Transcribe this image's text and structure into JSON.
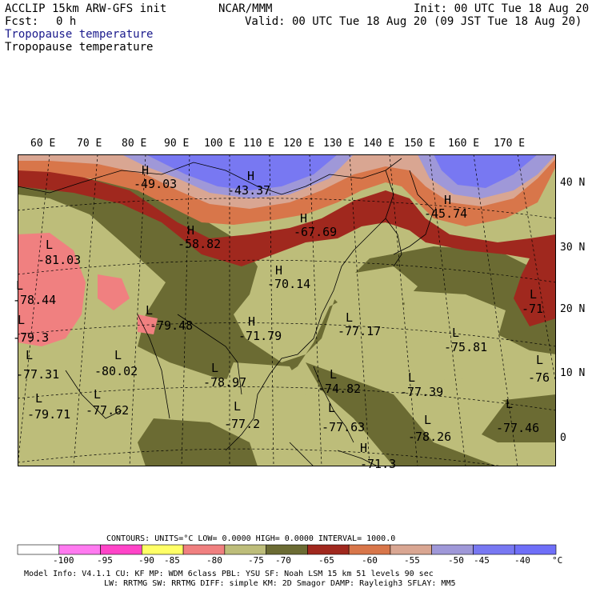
{
  "header": {
    "model_title": "ACCLIP 15km ARW-GFS init",
    "org": "NCAR/MMM",
    "init": "Init: 00 UTC Tue 18 Aug 20",
    "fcst_label": "Fcst:",
    "fcst_value": "0 h",
    "valid": "Valid: 00 UTC Tue 18 Aug 20 (09 JST Tue 18 Aug 20)",
    "field_line1": "Tropopause temperature",
    "field_line2": "Tropopause temperature"
  },
  "map": {
    "longitude_labels": [
      "60 E",
      "70 E",
      "80 E",
      "90 E",
      "100 E",
      "110 E",
      "120 E",
      "130 E",
      "140 E",
      "150 E",
      "160 E",
      "170 E"
    ],
    "latitude_labels": [
      "40 N",
      "30 N",
      "20 N",
      "10 N",
      "0"
    ],
    "annotations": [
      {
        "mark": "H",
        "value": "-49.03"
      },
      {
        "mark": "H",
        "value": "-43.37"
      },
      {
        "mark": "H",
        "value": "-45.74"
      },
      {
        "mark": "H",
        "value": "-58.82"
      },
      {
        "mark": "H",
        "value": "-67.69"
      },
      {
        "mark": "L",
        "value": "-81.03"
      },
      {
        "mark": "H",
        "value": "-70.14"
      },
      {
        "mark": "L",
        "value": "-78.44"
      },
      {
        "mark": "L",
        "value": "-79.48"
      },
      {
        "mark": "H",
        "value": "-71.79"
      },
      {
        "mark": "L",
        "value": "-77.17"
      },
      {
        "mark": "L",
        "value": "-75.81"
      },
      {
        "mark": "L",
        "value": "-71"
      },
      {
        "mark": "L",
        "value": "-79.3"
      },
      {
        "mark": "L",
        "value": "-77.31"
      },
      {
        "mark": "L",
        "value": "-80.02"
      },
      {
        "mark": "L",
        "value": "-78.97"
      },
      {
        "mark": "L",
        "value": "-74.82"
      },
      {
        "mark": "L",
        "value": "-77.39"
      },
      {
        "mark": "L",
        "value": "-76"
      },
      {
        "mark": "L",
        "value": "-79.71"
      },
      {
        "mark": "L",
        "value": "-77.62"
      },
      {
        "mark": "L",
        "value": "-77.2"
      },
      {
        "mark": "L",
        "value": "-77.63"
      },
      {
        "mark": "L",
        "value": "-78.26"
      },
      {
        "mark": "L",
        "value": "-77.46"
      },
      {
        "mark": "H",
        "value": "-71.3"
      }
    ],
    "colors": {
      "lt_-80": "#f08080",
      "-80_-75": "#bdbd7a",
      "-75_-70": "#6b6b33",
      "-70_-65": "#a0281e",
      "-65_-60": "#d8764a",
      "-60_-55": "#d9a692",
      "-55_-50": "#9f98d8",
      "-50_-45": "#7878f2",
      "-45_-40": "#6f6ff8"
    }
  },
  "footer": {
    "contours_line": "CONTOURS:  UNITS=°C  LOW=  0.0000        HIGH=  0.0000        INTERVAL=    1000.0",
    "colorbar": {
      "unit": "°C",
      "tick_labels": [
        "-100",
        "-95",
        "-90",
        "-85",
        "-80",
        "-75",
        "-70",
        "-65",
        "-60",
        "-55",
        "-50",
        "-45",
        "-40"
      ],
      "colors": [
        "#ffffff",
        "#ff7af0",
        "#ff44c8",
        "#ffff66",
        "#f08080",
        "#bdbd7a",
        "#6b6b33",
        "#a0281e",
        "#d8764a",
        "#d9a692",
        "#9f98d8",
        "#7878f2",
        "#6f6ff8"
      ]
    },
    "model_info_line1": "Model Info: V4.1.1     CU: KF       MP: WDM 6class  PBL: YSU        SF: Noah LSM      15 km   51 levels   90 sec",
    "model_info_line2": "LW: RRTMG     SW: RRTMG   DIFF: simple KM: 2D Smagor DAMP: Rayleigh3  SFLAY: MM5"
  }
}
